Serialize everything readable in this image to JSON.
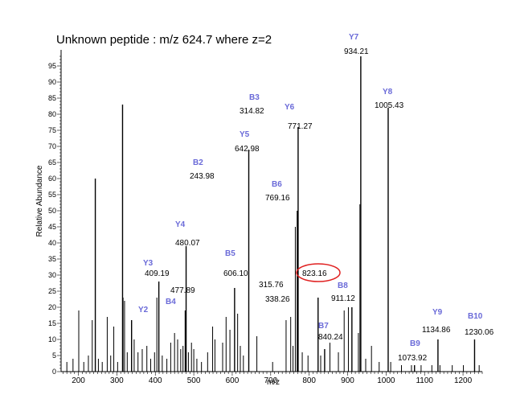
{
  "chart_data": {
    "type": "bar",
    "title": "Unknown peptide : m/z 624.7 where z=2",
    "xlabel": "m/z",
    "ylabel": "Relative Abundance",
    "xlim": [
      155,
      1250
    ],
    "ylim": [
      0,
      100
    ],
    "x_ticks": [
      200,
      300,
      400,
      500,
      600,
      700,
      800,
      900,
      1000,
      1100,
      1200
    ],
    "y_ticks": [
      0,
      5,
      10,
      15,
      20,
      25,
      30,
      35,
      40,
      45,
      50,
      55,
      60,
      65,
      70,
      75,
      80,
      85,
      90,
      95
    ],
    "peak_color": "#000000",
    "ion_label_color": "#6a6ad8",
    "highlight_color": "#e02020",
    "grid": false,
    "labeled_peaks": [
      {
        "ion": "B2",
        "mz": "243.98",
        "x": 243.98,
        "y": 60
      },
      {
        "ion": "B3",
        "mz": "314.82",
        "x": 314.82,
        "y": 83
      },
      {
        "ion": "",
        "mz": "315.76",
        "x": 315.76,
        "y": 23
      },
      {
        "ion": "",
        "mz": "338.26",
        "x": 338.26,
        "y": 16
      },
      {
        "ion": "Y2",
        "mz": "",
        "x": 335,
        "y": 0
      },
      {
        "ion": "Y3",
        "mz": "409.19",
        "x": 409.19,
        "y": 28
      },
      {
        "ion": "",
        "mz": "477.89",
        "x": 477.89,
        "y": 19
      },
      {
        "ion": "B4",
        "mz": "",
        "x": 478,
        "y": 0
      },
      {
        "ion": "Y4",
        "mz": "480.07",
        "x": 480.07,
        "y": 39
      },
      {
        "ion": "B5",
        "mz": "606.10",
        "x": 606.1,
        "y": 26
      },
      {
        "ion": "Y5",
        "mz": "642.98",
        "x": 642.98,
        "y": 69
      },
      {
        "ion": "B6",
        "mz": "769.16",
        "x": 769.16,
        "y": 50
      },
      {
        "ion": "Y6",
        "mz": "771.27",
        "x": 771.27,
        "y": 76
      },
      {
        "ion": "",
        "mz": "823.16",
        "x": 823.16,
        "y": 23,
        "highlight": true
      },
      {
        "ion": "B7",
        "mz": "840.24",
        "x": 840.24,
        "y": 7
      },
      {
        "ion": "B8",
        "mz": "911.12",
        "x": 911.12,
        "y": 20
      },
      {
        "ion": "Y7",
        "mz": "934.21",
        "x": 934.21,
        "y": 98
      },
      {
        "ion": "Y8",
        "mz": "1005.43",
        "x": 1005.43,
        "y": 82
      },
      {
        "ion": "B9",
        "mz": "1073.92",
        "x": 1073.92,
        "y": 2
      },
      {
        "ion": "Y9",
        "mz": "1134.86",
        "x": 1134.86,
        "y": 10
      },
      {
        "ion": "B10",
        "mz": "1230.06",
        "x": 1230.06,
        "y": 10
      }
    ],
    "minor_peaks": [
      [
        170,
        3
      ],
      [
        186,
        4
      ],
      [
        201,
        19
      ],
      [
        214,
        3
      ],
      [
        226,
        5
      ],
      [
        236,
        16
      ],
      [
        252,
        4
      ],
      [
        262,
        3
      ],
      [
        275,
        17
      ],
      [
        284,
        5
      ],
      [
        292,
        14
      ],
      [
        302,
        3
      ],
      [
        320,
        22
      ],
      [
        327,
        6
      ],
      [
        345,
        10
      ],
      [
        355,
        6
      ],
      [
        366,
        7
      ],
      [
        378,
        8
      ],
      [
        388,
        4
      ],
      [
        398,
        6
      ],
      [
        404,
        23
      ],
      [
        418,
        5
      ],
      [
        430,
        4
      ],
      [
        440,
        9
      ],
      [
        450,
        12
      ],
      [
        458,
        10
      ],
      [
        466,
        7
      ],
      [
        472,
        8
      ],
      [
        486,
        6
      ],
      [
        494,
        9
      ],
      [
        500,
        7
      ],
      [
        508,
        4
      ],
      [
        520,
        3
      ],
      [
        536,
        6
      ],
      [
        549,
        14
      ],
      [
        555,
        10
      ],
      [
        575,
        9
      ],
      [
        584,
        17
      ],
      [
        594,
        13
      ],
      [
        614,
        18
      ],
      [
        621,
        8
      ],
      [
        629,
        5
      ],
      [
        664,
        11
      ],
      [
        705,
        3
      ],
      [
        740,
        16
      ],
      [
        752,
        17
      ],
      [
        758,
        8
      ],
      [
        764,
        45
      ],
      [
        782,
        6
      ],
      [
        797,
        5
      ],
      [
        830,
        5
      ],
      [
        854,
        9
      ],
      [
        876,
        6
      ],
      [
        891,
        19
      ],
      [
        902,
        20
      ],
      [
        928,
        12
      ],
      [
        932,
        52
      ],
      [
        947,
        4
      ],
      [
        962,
        8
      ],
      [
        982,
        3
      ],
      [
        1012,
        3
      ],
      [
        1040,
        2
      ],
      [
        1066,
        2
      ],
      [
        1091,
        2
      ],
      [
        1119,
        2
      ],
      [
        1140,
        2
      ],
      [
        1172,
        2
      ],
      [
        1201,
        2
      ],
      [
        1242,
        2
      ]
    ]
  }
}
